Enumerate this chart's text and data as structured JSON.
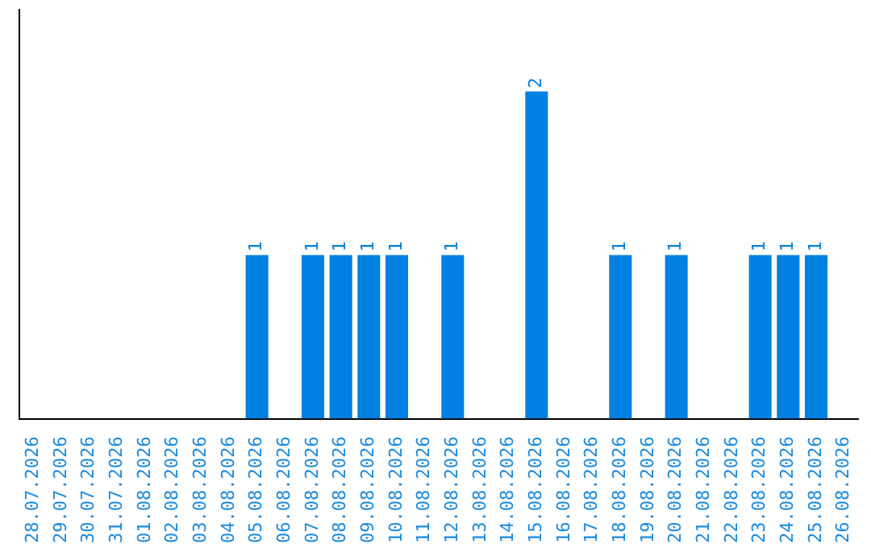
{
  "chart_data": {
    "type": "bar",
    "categories": [
      "28.07.2026",
      "29.07.2026",
      "30.07.2026",
      "31.07.2026",
      "01.08.2026",
      "02.08.2026",
      "03.08.2026",
      "04.08.2026",
      "05.08.2026",
      "06.08.2026",
      "07.08.2026",
      "08.08.2026",
      "09.08.2026",
      "10.08.2026",
      "11.08.2026",
      "12.08.2026",
      "13.08.2026",
      "14.08.2026",
      "15.08.2026",
      "16.08.2026",
      "17.08.2026",
      "18.08.2026",
      "19.08.2026",
      "20.08.2026",
      "21.08.2026",
      "22.08.2026",
      "23.08.2026",
      "24.08.2026",
      "25.08.2026",
      "26.08.2026"
    ],
    "values": [
      0,
      0,
      0,
      0,
      0,
      0,
      0,
      0,
      1,
      0,
      1,
      1,
      1,
      1,
      0,
      1,
      0,
      0,
      2,
      0,
      0,
      1,
      0,
      1,
      0,
      0,
      1,
      1,
      1,
      0
    ],
    "value_labels": [
      null,
      null,
      null,
      null,
      null,
      null,
      null,
      null,
      "1",
      null,
      "1",
      "1",
      "1",
      "1",
      null,
      "1",
      null,
      null,
      "2",
      null,
      null,
      "1",
      null,
      "1",
      null,
      null,
      "1",
      "1",
      "1",
      null
    ],
    "color": "#0080e0",
    "grid": false,
    "legend": false,
    "tick_labels": "x"
  }
}
